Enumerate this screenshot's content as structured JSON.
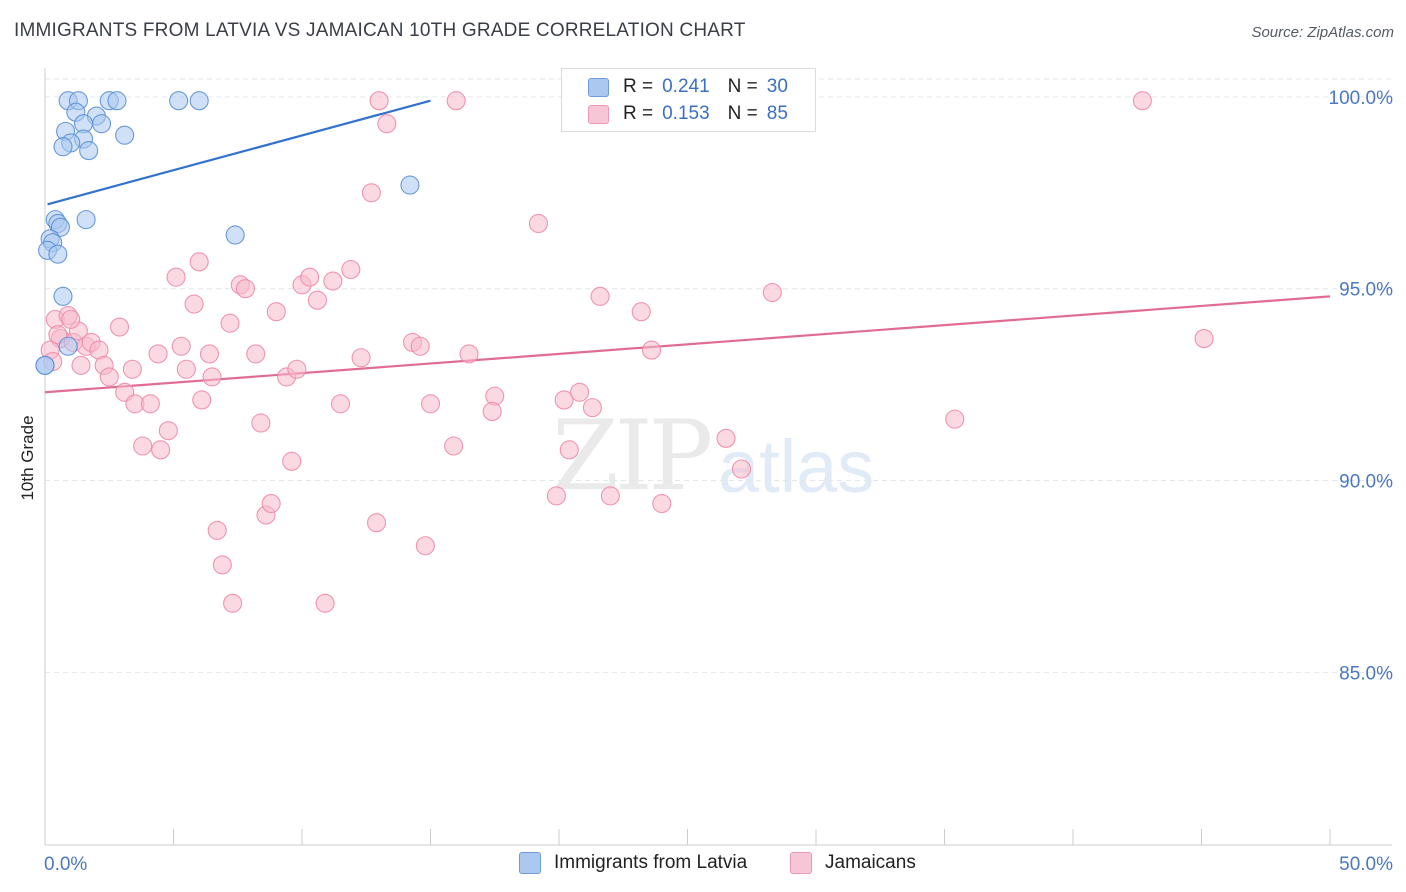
{
  "title": "IMMIGRANTS FROM LATVIA VS JAMAICAN 10TH GRADE CORRELATION CHART",
  "source": "Source: ZipAtlas.com",
  "watermark": {
    "zip": "ZIP",
    "atlas": "atlas"
  },
  "legend": {
    "rows": [
      {
        "r_label": "R =",
        "r_value": "0.241",
        "n_label": "N =",
        "n_value": "30",
        "color": "#aac8f0"
      },
      {
        "r_label": "R =",
        "r_value": "0.153",
        "n_label": "N =",
        "n_value": "85",
        "color": "#f7b9cc"
      }
    ]
  },
  "bottom_legend": {
    "series1": "Immigrants from Latvia",
    "series2": "Jamaicans"
  },
  "chart_data": {
    "type": "scatter",
    "title": "IMMIGRANTS FROM LATVIA VS JAMAICAN 10TH GRADE CORRELATION CHART",
    "xlabel": "",
    "ylabel": "10th Grade",
    "xlim": [
      0,
      50
    ],
    "ylim": [
      80.5,
      100.7
    ],
    "x_tick_labels": [
      "0.0%",
      "50.0%"
    ],
    "y_ticks": [
      85,
      90,
      95,
      100
    ],
    "y_tick_labels": [
      "85.0%",
      "90.0%",
      "95.0%",
      "100.0%"
    ],
    "grid": true,
    "legend_position": "top-center",
    "series": [
      {
        "name": "Immigrants from Latvia",
        "color": "#5b8fd6",
        "fill": "#aac8f0",
        "trend": {
          "x": [
            0.1,
            15.0
          ],
          "y": [
            97.2,
            99.9
          ],
          "color": "#3372cc"
        },
        "points": [
          [
            0.0,
            93.0
          ],
          [
            0.9,
            99.9
          ],
          [
            1.3,
            99.9
          ],
          [
            2.5,
            99.9
          ],
          [
            2.8,
            99.9
          ],
          [
            5.2,
            99.9
          ],
          [
            6.0,
            99.9
          ],
          [
            1.2,
            99.6
          ],
          [
            2.0,
            99.5
          ],
          [
            1.5,
            99.3
          ],
          [
            2.2,
            99.3
          ],
          [
            0.8,
            99.1
          ],
          [
            3.1,
            99.0
          ],
          [
            1.5,
            98.9
          ],
          [
            1.0,
            98.8
          ],
          [
            0.7,
            98.7
          ],
          [
            1.7,
            98.6
          ],
          [
            14.2,
            97.7
          ],
          [
            0.4,
            96.8
          ],
          [
            1.6,
            96.8
          ],
          [
            0.5,
            96.7
          ],
          [
            0.6,
            96.6
          ],
          [
            7.4,
            96.4
          ],
          [
            0.2,
            96.3
          ],
          [
            0.3,
            96.2
          ],
          [
            0.1,
            96.0
          ],
          [
            0.5,
            95.9
          ],
          [
            0.7,
            94.8
          ],
          [
            0.9,
            93.5
          ],
          [
            0.0,
            93.0
          ]
        ]
      },
      {
        "name": "Jamaicans",
        "color": "#ee8aa8",
        "fill": "#f7b9cc",
        "trend": {
          "x": [
            0.0,
            50.0
          ],
          "y": [
            92.3,
            94.8
          ],
          "color": "#e06c93"
        },
        "points": [
          [
            0.4,
            94.2
          ],
          [
            0.6,
            93.7
          ],
          [
            0.9,
            94.3
          ],
          [
            1.1,
            93.6
          ],
          [
            1.3,
            93.9
          ],
          [
            1.6,
            93.5
          ],
          [
            1.4,
            93.0
          ],
          [
            1.8,
            93.6
          ],
          [
            2.1,
            93.4
          ],
          [
            2.3,
            93.0
          ],
          [
            2.5,
            92.7
          ],
          [
            2.9,
            94.0
          ],
          [
            3.1,
            92.3
          ],
          [
            3.4,
            92.9
          ],
          [
            3.5,
            92.0
          ],
          [
            4.1,
            92.0
          ],
          [
            4.4,
            93.3
          ],
          [
            3.8,
            90.9
          ],
          [
            4.5,
            90.8
          ],
          [
            4.8,
            91.3
          ],
          [
            5.1,
            95.3
          ],
          [
            5.3,
            93.5
          ],
          [
            5.5,
            92.9
          ],
          [
            5.8,
            94.6
          ],
          [
            6.0,
            95.7
          ],
          [
            6.1,
            92.1
          ],
          [
            6.4,
            93.3
          ],
          [
            6.5,
            92.7
          ],
          [
            6.7,
            88.7
          ],
          [
            6.9,
            87.8
          ],
          [
            7.2,
            94.1
          ],
          [
            7.3,
            86.8
          ],
          [
            7.6,
            95.1
          ],
          [
            7.8,
            95.0
          ],
          [
            8.2,
            93.3
          ],
          [
            8.4,
            91.5
          ],
          [
            8.6,
            89.1
          ],
          [
            8.8,
            89.4
          ],
          [
            9.0,
            94.4
          ],
          [
            9.4,
            92.7
          ],
          [
            9.6,
            90.5
          ],
          [
            9.8,
            92.9
          ],
          [
            10.0,
            95.1
          ],
          [
            10.3,
            95.3
          ],
          [
            10.6,
            94.7
          ],
          [
            10.9,
            86.8
          ],
          [
            11.2,
            95.2
          ],
          [
            11.5,
            92.0
          ],
          [
            11.9,
            95.5
          ],
          [
            12.3,
            93.2
          ],
          [
            12.7,
            97.5
          ],
          [
            12.9,
            88.9
          ],
          [
            13.0,
            99.9
          ],
          [
            13.3,
            99.3
          ],
          [
            14.3,
            93.6
          ],
          [
            14.6,
            93.5
          ],
          [
            14.8,
            88.3
          ],
          [
            15.0,
            92.0
          ],
          [
            15.9,
            90.9
          ],
          [
            16.0,
            99.9
          ],
          [
            16.5,
            93.3
          ],
          [
            17.5,
            92.2
          ],
          [
            17.4,
            91.8
          ],
          [
            19.2,
            96.7
          ],
          [
            19.9,
            89.6
          ],
          [
            20.2,
            92.1
          ],
          [
            20.4,
            90.8
          ],
          [
            20.8,
            92.3
          ],
          [
            21.3,
            91.9
          ],
          [
            21.6,
            94.8
          ],
          [
            22.0,
            89.6
          ],
          [
            23.2,
            94.4
          ],
          [
            23.6,
            93.4
          ],
          [
            24.0,
            89.4
          ],
          [
            26.5,
            91.1
          ],
          [
            27.1,
            90.3
          ],
          [
            27.9,
            99.9
          ],
          [
            28.3,
            94.9
          ],
          [
            35.4,
            91.6
          ],
          [
            42.7,
            99.9
          ],
          [
            45.1,
            93.7
          ],
          [
            0.2,
            93.4
          ],
          [
            0.3,
            93.1
          ],
          [
            0.5,
            93.8
          ],
          [
            1.0,
            94.2
          ]
        ]
      }
    ]
  }
}
